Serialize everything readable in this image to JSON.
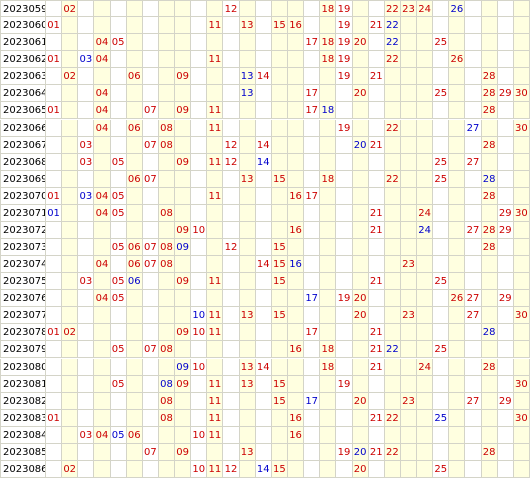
{
  "colors": {
    "red": "#cc0000",
    "blue": "#0000cc",
    "highlight": "#ffffe0",
    "grid_line": "#d4d4c8"
  },
  "highlight_columns": [
    2,
    4,
    6,
    8,
    9,
    11,
    13,
    15,
    16,
    18,
    20,
    22,
    23,
    24,
    26,
    28,
    30
  ],
  "rows": [
    {
      "issue": "2023059",
      "nums": [
        [
          "02",
          "red"
        ],
        [
          "12",
          "red"
        ],
        [
          "18",
          "red"
        ],
        [
          "19",
          "red"
        ],
        [
          "22",
          "red"
        ],
        [
          "23",
          "red"
        ],
        [
          "24",
          "red"
        ],
        [
          "26",
          "blue"
        ]
      ]
    },
    {
      "issue": "2023060",
      "nums": [
        [
          "01",
          "red"
        ],
        [
          "11",
          "red"
        ],
        [
          "13",
          "red"
        ],
        [
          "15",
          "red"
        ],
        [
          "16",
          "red"
        ],
        [
          "19",
          "red"
        ],
        [
          "21",
          "red"
        ],
        [
          "22",
          "blue"
        ]
      ]
    },
    {
      "issue": "2023061",
      "nums": [
        [
          "04",
          "red"
        ],
        [
          "05",
          "red"
        ],
        [
          "17",
          "red"
        ],
        [
          "18",
          "red"
        ],
        [
          "19",
          "red"
        ],
        [
          "20",
          "red"
        ],
        [
          "22",
          "blue"
        ],
        [
          "25",
          "red"
        ]
      ]
    },
    {
      "issue": "2023062",
      "nums": [
        [
          "01",
          "red"
        ],
        [
          "03",
          "blue"
        ],
        [
          "04",
          "red"
        ],
        [
          "11",
          "red"
        ],
        [
          "18",
          "red"
        ],
        [
          "19",
          "red"
        ],
        [
          "22",
          "red"
        ],
        [
          "26",
          "red"
        ]
      ]
    },
    {
      "issue": "2023063",
      "nums": [
        [
          "02",
          "red"
        ],
        [
          "06",
          "red"
        ],
        [
          "09",
          "red"
        ],
        [
          "13",
          "blue"
        ],
        [
          "14",
          "red"
        ],
        [
          "19",
          "red"
        ],
        [
          "21",
          "red"
        ],
        [
          "28",
          "red"
        ]
      ]
    },
    {
      "issue": "2023064",
      "nums": [
        [
          "04",
          "red"
        ],
        [
          "13",
          "blue"
        ],
        [
          "17",
          "red"
        ],
        [
          "20",
          "red"
        ],
        [
          "25",
          "red"
        ],
        [
          "28",
          "red"
        ],
        [
          "29",
          "red"
        ],
        [
          "30",
          "red"
        ]
      ]
    },
    {
      "issue": "2023065",
      "nums": [
        [
          "01",
          "red"
        ],
        [
          "04",
          "red"
        ],
        [
          "07",
          "red"
        ],
        [
          "09",
          "red"
        ],
        [
          "11",
          "red"
        ],
        [
          "17",
          "red"
        ],
        [
          "18",
          "blue"
        ],
        [
          "28",
          "red"
        ]
      ]
    },
    {
      "issue": "2023066",
      "nums": [
        [
          "04",
          "red"
        ],
        [
          "06",
          "red"
        ],
        [
          "08",
          "red"
        ],
        [
          "11",
          "red"
        ],
        [
          "19",
          "red"
        ],
        [
          "22",
          "red"
        ],
        [
          "27",
          "blue"
        ],
        [
          "30",
          "red"
        ]
      ]
    },
    {
      "issue": "2023067",
      "nums": [
        [
          "03",
          "red"
        ],
        [
          "07",
          "red"
        ],
        [
          "08",
          "red"
        ],
        [
          "12",
          "red"
        ],
        [
          "14",
          "red"
        ],
        [
          "20",
          "blue"
        ],
        [
          "21",
          "red"
        ],
        [
          "28",
          "red"
        ]
      ]
    },
    {
      "issue": "2023068",
      "nums": [
        [
          "03",
          "red"
        ],
        [
          "05",
          "red"
        ],
        [
          "09",
          "red"
        ],
        [
          "11",
          "red"
        ],
        [
          "12",
          "red"
        ],
        [
          "14",
          "blue"
        ],
        [
          "25",
          "red"
        ],
        [
          "27",
          "red"
        ]
      ]
    },
    {
      "issue": "2023069",
      "nums": [
        [
          "06",
          "red"
        ],
        [
          "07",
          "red"
        ],
        [
          "13",
          "red"
        ],
        [
          "15",
          "red"
        ],
        [
          "18",
          "red"
        ],
        [
          "22",
          "red"
        ],
        [
          "25",
          "red"
        ],
        [
          "28",
          "blue"
        ]
      ]
    },
    {
      "issue": "2023070",
      "nums": [
        [
          "01",
          "red"
        ],
        [
          "03",
          "blue"
        ],
        [
          "04",
          "red"
        ],
        [
          "05",
          "red"
        ],
        [
          "11",
          "red"
        ],
        [
          "16",
          "red"
        ],
        [
          "17",
          "red"
        ],
        [
          "28",
          "red"
        ]
      ]
    },
    {
      "issue": "2023071",
      "nums": [
        [
          "01",
          "blue"
        ],
        [
          "04",
          "red"
        ],
        [
          "05",
          "red"
        ],
        [
          "08",
          "red"
        ],
        [
          "21",
          "red"
        ],
        [
          "24",
          "red"
        ],
        [
          "29",
          "red"
        ],
        [
          "30",
          "red"
        ]
      ]
    },
    {
      "issue": "2023072",
      "nums": [
        [
          "09",
          "red"
        ],
        [
          "10",
          "red"
        ],
        [
          "16",
          "red"
        ],
        [
          "21",
          "red"
        ],
        [
          "24",
          "blue"
        ],
        [
          "27",
          "red"
        ],
        [
          "28",
          "red"
        ],
        [
          "29",
          "red"
        ]
      ]
    },
    {
      "issue": "2023073",
      "nums": [
        [
          "05",
          "red"
        ],
        [
          "06",
          "red"
        ],
        [
          "07",
          "red"
        ],
        [
          "08",
          "red"
        ],
        [
          "09",
          "blue"
        ],
        [
          "12",
          "red"
        ],
        [
          "15",
          "red"
        ],
        [
          "28",
          "red"
        ]
      ]
    },
    {
      "issue": "2023074",
      "nums": [
        [
          "04",
          "red"
        ],
        [
          "06",
          "red"
        ],
        [
          "07",
          "red"
        ],
        [
          "08",
          "red"
        ],
        [
          "14",
          "red"
        ],
        [
          "15",
          "red"
        ],
        [
          "16",
          "blue"
        ],
        [
          "23",
          "red"
        ]
      ]
    },
    {
      "issue": "2023075",
      "nums": [
        [
          "03",
          "red"
        ],
        [
          "05",
          "red"
        ],
        [
          "06",
          "blue"
        ],
        [
          "09",
          "red"
        ],
        [
          "11",
          "red"
        ],
        [
          "15",
          "red"
        ],
        [
          "21",
          "red"
        ],
        [
          "25",
          "red"
        ]
      ]
    },
    {
      "issue": "2023076",
      "nums": [
        [
          "04",
          "red"
        ],
        [
          "05",
          "red"
        ],
        [
          "17",
          "blue"
        ],
        [
          "19",
          "red"
        ],
        [
          "20",
          "red"
        ],
        [
          "26",
          "red"
        ],
        [
          "27",
          "red"
        ],
        [
          "29",
          "red"
        ]
      ]
    },
    {
      "issue": "2023077",
      "nums": [
        [
          "10",
          "blue"
        ],
        [
          "11",
          "red"
        ],
        [
          "13",
          "red"
        ],
        [
          "15",
          "red"
        ],
        [
          "20",
          "red"
        ],
        [
          "23",
          "red"
        ],
        [
          "27",
          "red"
        ],
        [
          "30",
          "red"
        ]
      ]
    },
    {
      "issue": "2023078",
      "nums": [
        [
          "01",
          "red"
        ],
        [
          "02",
          "red"
        ],
        [
          "09",
          "red"
        ],
        [
          "10",
          "red"
        ],
        [
          "11",
          "red"
        ],
        [
          "17",
          "red"
        ],
        [
          "21",
          "red"
        ],
        [
          "28",
          "blue"
        ]
      ]
    },
    {
      "issue": "2023079",
      "nums": [
        [
          "05",
          "red"
        ],
        [
          "07",
          "red"
        ],
        [
          "08",
          "red"
        ],
        [
          "16",
          "red"
        ],
        [
          "18",
          "red"
        ],
        [
          "21",
          "red"
        ],
        [
          "22",
          "blue"
        ],
        [
          "25",
          "red"
        ]
      ]
    },
    {
      "issue": "2023080",
      "nums": [
        [
          "09",
          "blue"
        ],
        [
          "10",
          "red"
        ],
        [
          "13",
          "red"
        ],
        [
          "14",
          "red"
        ],
        [
          "18",
          "red"
        ],
        [
          "21",
          "red"
        ],
        [
          "24",
          "red"
        ],
        [
          "28",
          "red"
        ]
      ]
    },
    {
      "issue": "2023081",
      "nums": [
        [
          "05",
          "red"
        ],
        [
          "08",
          "blue"
        ],
        [
          "09",
          "red"
        ],
        [
          "11",
          "red"
        ],
        [
          "13",
          "red"
        ],
        [
          "15",
          "red"
        ],
        [
          "19",
          "red"
        ],
        [
          "30",
          "red"
        ]
      ]
    },
    {
      "issue": "2023082",
      "nums": [
        [
          "08",
          "red"
        ],
        [
          "11",
          "red"
        ],
        [
          "15",
          "red"
        ],
        [
          "17",
          "blue"
        ],
        [
          "20",
          "red"
        ],
        [
          "23",
          "red"
        ],
        [
          "27",
          "red"
        ],
        [
          "29",
          "red"
        ]
      ]
    },
    {
      "issue": "2023083",
      "nums": [
        [
          "01",
          "red"
        ],
        [
          "08",
          "red"
        ],
        [
          "11",
          "red"
        ],
        [
          "16",
          "red"
        ],
        [
          "21",
          "red"
        ],
        [
          "22",
          "red"
        ],
        [
          "25",
          "blue"
        ],
        [
          "30",
          "red"
        ]
      ]
    },
    {
      "issue": "2023084",
      "nums": [
        [
          "03",
          "red"
        ],
        [
          "04",
          "red"
        ],
        [
          "05",
          "blue"
        ],
        [
          "06",
          "red"
        ],
        [
          "10",
          "red"
        ],
        [
          "11",
          "red"
        ],
        [
          "16",
          "red"
        ]
      ]
    },
    {
      "issue": "2023085",
      "nums": [
        [
          "07",
          "red"
        ],
        [
          "09",
          "red"
        ],
        [
          "13",
          "red"
        ],
        [
          "19",
          "red"
        ],
        [
          "20",
          "blue"
        ],
        [
          "21",
          "red"
        ],
        [
          "22",
          "red"
        ],
        [
          "28",
          "red"
        ]
      ]
    },
    {
      "issue": "2023086",
      "nums": [
        [
          "02",
          "red"
        ],
        [
          "10",
          "red"
        ],
        [
          "11",
          "red"
        ],
        [
          "12",
          "red"
        ],
        [
          "14",
          "blue"
        ],
        [
          "15",
          "red"
        ],
        [
          "20",
          "red"
        ],
        [
          "25",
          "red"
        ]
      ]
    }
  ]
}
